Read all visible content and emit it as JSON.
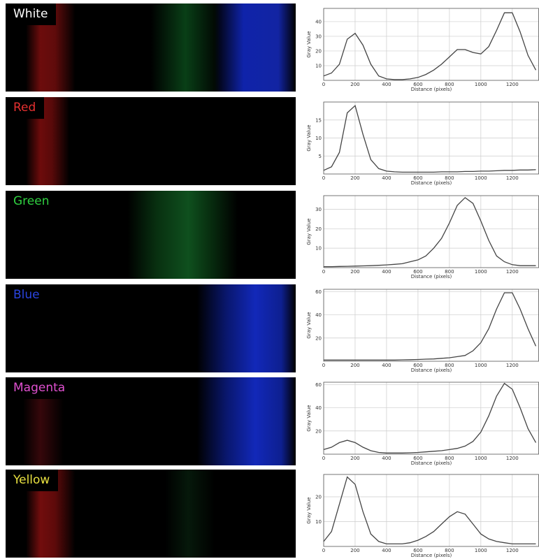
{
  "chart_data": [
    {
      "type": "line",
      "label": "White",
      "xlabel": "Distance (pixels)",
      "ylabel": "Gray Value",
      "color": "#444",
      "grid": true,
      "x": [
        0,
        50,
        100,
        150,
        200,
        250,
        300,
        350,
        400,
        450,
        500,
        550,
        600,
        650,
        700,
        750,
        800,
        850,
        900,
        950,
        1000,
        1050,
        1100,
        1150,
        1200,
        1250,
        1300,
        1350
      ],
      "values": [
        3,
        5,
        11,
        28,
        32,
        24,
        11,
        3,
        1,
        0.5,
        0.5,
        1,
        2,
        4,
        7,
        11,
        16,
        21,
        21,
        19,
        18,
        23,
        34,
        46,
        46,
        33,
        17,
        7
      ],
      "xlim": [
        0,
        1370
      ],
      "ylim": [
        0,
        49
      ],
      "xticks": [
        0,
        200,
        400,
        600,
        800,
        1000,
        1200
      ],
      "yticks": [
        10,
        20,
        30,
        40
      ]
    },
    {
      "type": "line",
      "label": "Red",
      "xlabel": "Distance (pixels)",
      "ylabel": "Gray Value",
      "color": "#444",
      "grid": true,
      "x": [
        0,
        50,
        100,
        150,
        200,
        250,
        300,
        350,
        400,
        450,
        500,
        550,
        600,
        650,
        700,
        750,
        800,
        850,
        900,
        950,
        1000,
        1050,
        1100,
        1150,
        1200,
        1250,
        1300,
        1350
      ],
      "values": [
        1,
        2,
        6,
        17,
        19,
        11,
        4,
        1.5,
        0.8,
        0.6,
        0.5,
        0.5,
        0.5,
        0.5,
        0.5,
        0.6,
        0.6,
        0.6,
        0.7,
        0.7,
        0.8,
        0.8,
        0.9,
        1,
        1,
        1.1,
        1.1,
        1.2
      ],
      "xlim": [
        0,
        1370
      ],
      "ylim": [
        0,
        20
      ],
      "xticks": [
        0,
        200,
        400,
        600,
        800,
        1000,
        1200
      ],
      "yticks": [
        5,
        10,
        15
      ]
    },
    {
      "type": "line",
      "label": "Green",
      "xlabel": "Distance (pixels)",
      "ylabel": "Gray Value",
      "color": "#444",
      "grid": true,
      "x": [
        0,
        50,
        100,
        150,
        200,
        250,
        300,
        350,
        400,
        450,
        500,
        550,
        600,
        650,
        700,
        750,
        800,
        850,
        900,
        950,
        1000,
        1050,
        1100,
        1150,
        1200,
        1250,
        1300,
        1350
      ],
      "values": [
        0.5,
        0.5,
        0.6,
        0.7,
        0.8,
        0.9,
        1,
        1.2,
        1.4,
        1.7,
        2,
        3,
        4,
        6,
        10,
        15,
        23,
        32,
        36,
        33,
        24,
        14,
        6,
        3,
        1.5,
        1,
        1,
        1
      ],
      "xlim": [
        0,
        1370
      ],
      "ylim": [
        0,
        37
      ],
      "xticks": [
        0,
        200,
        400,
        600,
        800,
        1000,
        1200
      ],
      "yticks": [
        10,
        20,
        30
      ]
    },
    {
      "type": "line",
      "label": "Blue",
      "xlabel": "Distance (pixels)",
      "ylabel": "Gray Value",
      "color": "#444",
      "grid": true,
      "x": [
        0,
        50,
        100,
        150,
        200,
        250,
        300,
        350,
        400,
        450,
        500,
        550,
        600,
        650,
        700,
        750,
        800,
        850,
        900,
        950,
        1000,
        1050,
        1100,
        1150,
        1200,
        1250,
        1300,
        1350
      ],
      "values": [
        1,
        1,
        1,
        1,
        1,
        1,
        1,
        1,
        1,
        1,
        1.2,
        1.3,
        1.5,
        1.8,
        2,
        2.5,
        3,
        4,
        5,
        9,
        16,
        28,
        45,
        59,
        59,
        45,
        28,
        13
      ],
      "xlim": [
        0,
        1370
      ],
      "ylim": [
        0,
        62
      ],
      "xticks": [
        0,
        200,
        400,
        600,
        800,
        1000,
        1200
      ],
      "yticks": [
        20,
        40,
        60
      ]
    },
    {
      "type": "line",
      "label": "Magenta",
      "xlabel": "Distance (pixels)",
      "ylabel": "Gray Value",
      "color": "#444",
      "grid": true,
      "x": [
        0,
        50,
        100,
        150,
        200,
        250,
        300,
        350,
        400,
        450,
        500,
        550,
        600,
        650,
        700,
        750,
        800,
        850,
        900,
        950,
        1000,
        1050,
        1100,
        1150,
        1200,
        1250,
        1300,
        1350
      ],
      "values": [
        4,
        6,
        10,
        12,
        10,
        6,
        3,
        1.5,
        1,
        1,
        1,
        1.2,
        1.5,
        2,
        2.5,
        3,
        4,
        5,
        7,
        11,
        19,
        33,
        50,
        61,
        56,
        40,
        22,
        10
      ],
      "xlim": [
        0,
        1370
      ],
      "ylim": [
        0,
        62
      ],
      "xticks": [
        0,
        200,
        400,
        600,
        800,
        1000,
        1200
      ],
      "yticks": [
        20,
        40,
        60
      ]
    },
    {
      "type": "line",
      "label": "Yellow",
      "xlabel": "Distance (pixels)",
      "ylabel": "Gray Value",
      "color": "#444",
      "grid": true,
      "x": [
        0,
        50,
        100,
        150,
        200,
        250,
        300,
        350,
        400,
        450,
        500,
        550,
        600,
        650,
        700,
        750,
        800,
        850,
        900,
        950,
        1000,
        1050,
        1100,
        1150,
        1200,
        1250,
        1300,
        1350
      ],
      "values": [
        2,
        6,
        17,
        28,
        25,
        14,
        5,
        2,
        1,
        1,
        1,
        1.5,
        2.5,
        4,
        6,
        9,
        12,
        14,
        13,
        9,
        5,
        3,
        2,
        1.5,
        1,
        1,
        1,
        1
      ],
      "xlim": [
        0,
        1370
      ],
      "ylim": [
        0,
        29
      ],
      "xticks": [
        0,
        200,
        400,
        600,
        800,
        1000,
        1200
      ],
      "yticks": [
        10,
        20
      ]
    }
  ]
}
